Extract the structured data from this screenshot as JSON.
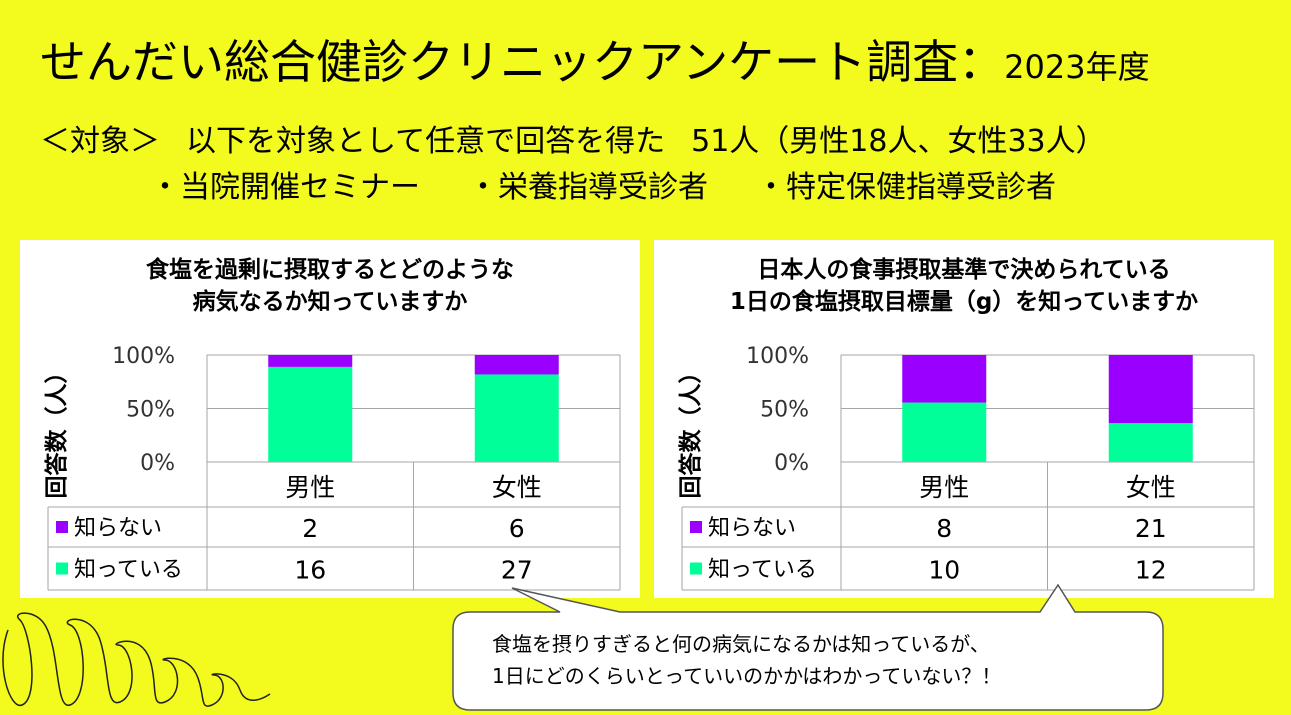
{
  "header": {
    "title": "せんだい総合健診クリニックアンケート調査",
    "colon": "：",
    "year": "2023年度"
  },
  "target": {
    "label": "＜対象＞",
    "text": "以下を対象として任意で回答を得た",
    "count": "51人（男性18人、女性33人）",
    "groups": [
      "・当院開催セミナー",
      "・栄養指導受診者",
      "・特定保健指導受診者"
    ]
  },
  "callout": {
    "line1": "食塩を摂りすぎると何の病気になるかは知っているが、",
    "line2": "1日にどのくらいとっていいのかかはわかっていない？！"
  },
  "colors": {
    "background": "#f2fa1e",
    "know": "#00ff99",
    "dont_know": "#9900ff"
  },
  "chart_data": [
    {
      "type": "bar",
      "stacked": "percent",
      "title_line1": "食塩を過剰に摂取するとどのような",
      "title_line2": "病気なるか知っていますか",
      "ylabel": "回答数（人）",
      "yticks": [
        "100%",
        "50%",
        "0%"
      ],
      "ylim": [
        0,
        100
      ],
      "categories": [
        "男性",
        "女性"
      ],
      "series": [
        {
          "name": "知らない",
          "color": "#9900ff",
          "values": [
            2,
            6
          ],
          "labels": [
            "2",
            "6"
          ]
        },
        {
          "name": "知っている",
          "color": "#00ff99",
          "values": [
            16,
            27
          ],
          "labels": [
            "16",
            "27"
          ]
        }
      ],
      "grid": true
    },
    {
      "type": "bar",
      "stacked": "percent",
      "title_line1": "日本人の食事摂取基準で決められている",
      "title_line2": "1日の食塩摂取目標量（g）を知っていますか",
      "ylabel": "回答数（人）",
      "yticks": [
        "100%",
        "50%",
        "0%"
      ],
      "ylim": [
        0,
        100
      ],
      "categories": [
        "男性",
        "女性"
      ],
      "series": [
        {
          "name": "知らない",
          "color": "#9900ff",
          "values": [
            8,
            21
          ],
          "labels": [
            "8",
            "21"
          ]
        },
        {
          "name": "知っている",
          "color": "#00ff99",
          "values": [
            10,
            12
          ],
          "labels": [
            "10",
            "12"
          ]
        }
      ],
      "grid": true
    }
  ]
}
